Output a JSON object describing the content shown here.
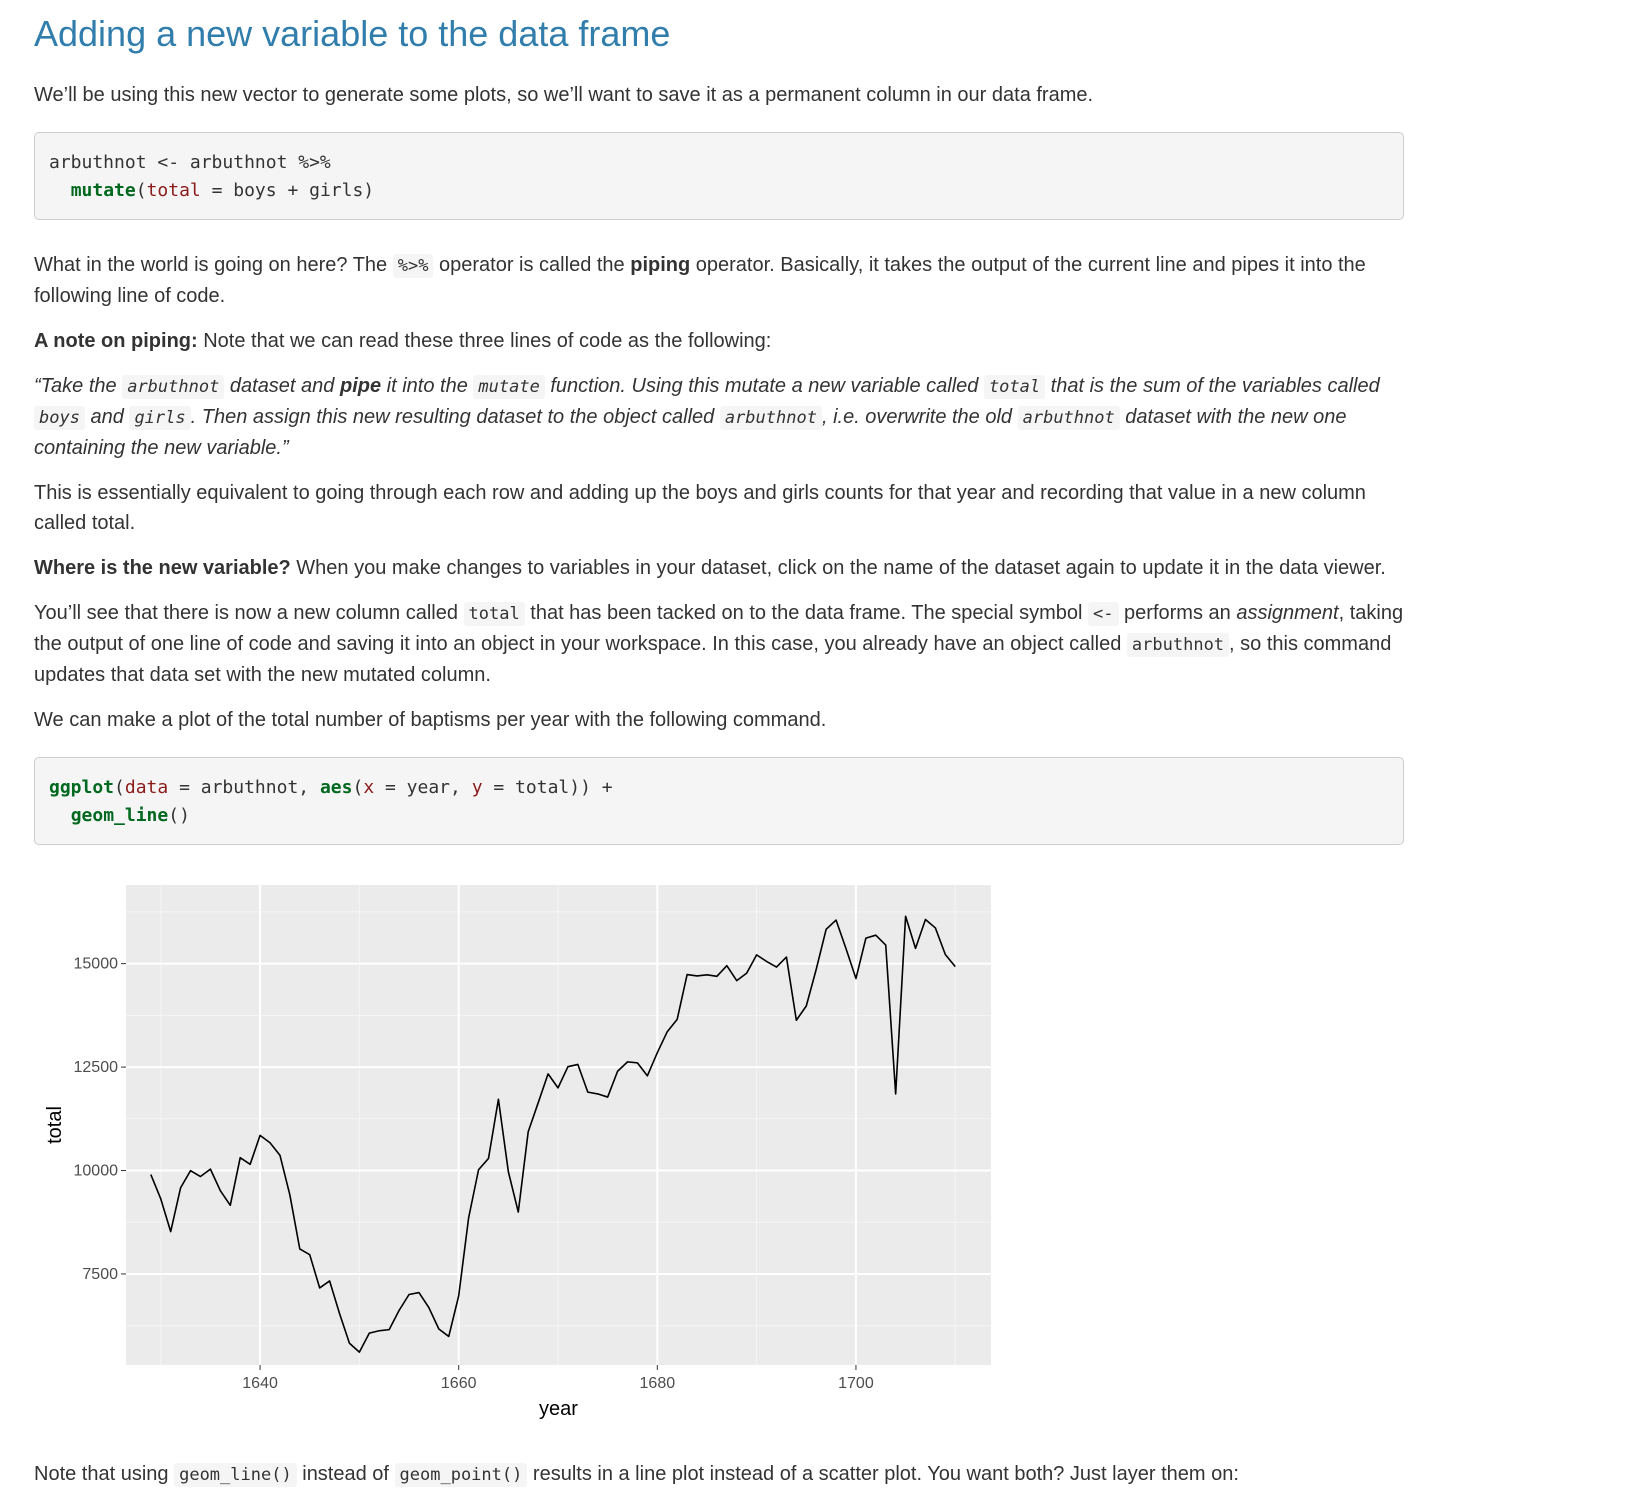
{
  "heading": "Adding a new variable to the data frame",
  "intro": "We’ll be using this new vector to generate some plots, so we’ll want to save it as a permanent column in our data frame.",
  "code1": {
    "line1": "arbuthnot <- arbuthnot %>%",
    "line2_indent": "  ",
    "line2_fn": "mutate",
    "line2_open": "(",
    "line2_arg": "total",
    "line2_rest": " = boys + girls)"
  },
  "para_pipe": {
    "t1": "What in the world is going on here? The ",
    "code": "%>%",
    "t2": " operator is called the ",
    "bold": "piping",
    "t3": " operator. Basically, it takes the output of the current line and pipes it into the following line of code."
  },
  "note": {
    "bold": "A note on piping:",
    "text": " Note that we can read these three lines of code as the following:"
  },
  "quote": {
    "t1": "“Take the ",
    "c1": "arbuthnot",
    "t2": " dataset and ",
    "b1": "pipe",
    "t3": " it into the ",
    "c2": "mutate",
    "t4": " function. Using this mutate a new variable called ",
    "c3": "total",
    "t5": " that is the sum of the variables called ",
    "c4": "boys",
    "t6": " and ",
    "c5": "girls",
    "t7": ". Then assign this new resulting dataset to the object called ",
    "c6": "arbuthnot",
    "t8": ", i.e. overwrite the old ",
    "c7": "arbuthnot",
    "t9": " dataset with the new one containing the new variable.”"
  },
  "para_equiv": "This is essentially equivalent to going through each row and adding up the boys and girls counts for that year and recording that value in a new column called total.",
  "where": {
    "bold": "Where is the new variable?",
    "text": " When you make changes to variables in your dataset, click on the name of the dataset again to update it in the data viewer."
  },
  "youll": {
    "t1": "You’ll see that there is now a new column called ",
    "c1": "total",
    "t2": " that has been tacked on to the data frame. The special symbol ",
    "c2": "<-",
    "t3": " performs an ",
    "em": "assignment",
    "t4": ", taking the output of one line of code and saving it into an object in your workspace. In this case, you already have an object called ",
    "c3": "arbuthnot",
    "t5": ", so this command updates that data set with the new mutated column."
  },
  "para_plot": "We can make a plot of the total number of baptisms per year with the following command.",
  "code2": {
    "fn1": "ggplot",
    "open1": "(",
    "arg1": "data",
    "mid1": " = arbuthnot, ",
    "fn2": "aes",
    "open2": "(",
    "arg2": "x",
    "mid2": " = year, ",
    "arg3": "y",
    "end1": " = total)) +",
    "indent": "  ",
    "fn3": "geom_line",
    "end2": "()"
  },
  "chart_data": {
    "type": "line",
    "xlabel": "year",
    "ylabel": "total",
    "xlim": [
      1626.5,
      1713.6
    ],
    "ylim": [
      5300,
      16900
    ],
    "xticks": [
      1640,
      1660,
      1680,
      1700
    ],
    "yticks": [
      7500,
      10000,
      12500,
      15000
    ],
    "xtick_labels": [
      "1640",
      "1660",
      "1680",
      "1700"
    ],
    "ytick_labels": [
      "7500",
      "10000",
      "12500",
      "15000"
    ],
    "grid": true,
    "line_color": "#000000",
    "panel_color": "#ebebeb",
    "x": [
      1629,
      1630,
      1631,
      1632,
      1633,
      1634,
      1635,
      1636,
      1637,
      1638,
      1639,
      1640,
      1641,
      1642,
      1643,
      1644,
      1645,
      1646,
      1647,
      1648,
      1649,
      1650,
      1651,
      1652,
      1653,
      1654,
      1655,
      1656,
      1657,
      1658,
      1659,
      1660,
      1661,
      1662,
      1663,
      1664,
      1665,
      1666,
      1667,
      1668,
      1669,
      1670,
      1671,
      1672,
      1673,
      1674,
      1675,
      1676,
      1677,
      1678,
      1679,
      1680,
      1681,
      1682,
      1683,
      1684,
      1685,
      1686,
      1687,
      1688,
      1689,
      1690,
      1691,
      1692,
      1693,
      1694,
      1695,
      1696,
      1697,
      1698,
      1699,
      1700,
      1701,
      1702,
      1703,
      1704,
      1705,
      1706,
      1707,
      1708,
      1709,
      1710
    ],
    "y": [
      9901,
      9315,
      8524,
      9584,
      9997,
      9855,
      10034,
      9512,
      9160,
      10311,
      10150,
      10850,
      10670,
      10370,
      9410,
      8104,
      7966,
      7163,
      7332,
      6544,
      5825,
      5612,
      6071,
      6128,
      6155,
      6620,
      7004,
      7050,
      6685,
      6170,
      5990,
      6971,
      8855,
      10019,
      10292,
      11722,
      9972,
      8997,
      10938,
      11633,
      12335,
      11997,
      12510,
      12563,
      11895,
      11851,
      11775,
      12399,
      12626,
      12601,
      12288,
      12847,
      13355,
      13653,
      14735,
      14702,
      14730,
      14694,
      14951,
      14588,
      14771,
      15211,
      15054,
      14918,
      15159,
      13632,
      13976,
      14861,
      15829,
      16052,
      15363,
      14639,
      15616,
      15687,
      15448,
      11851,
      16145,
      15369,
      16066,
      15862,
      15220,
      14928
    ]
  },
  "para_final": {
    "t1": "Note that using ",
    "c1": "geom_line()",
    "t2": " instead of ",
    "c2": "geom_point()",
    "t3": " results in a line plot instead of a scatter plot. You want both? Just layer them on:"
  }
}
